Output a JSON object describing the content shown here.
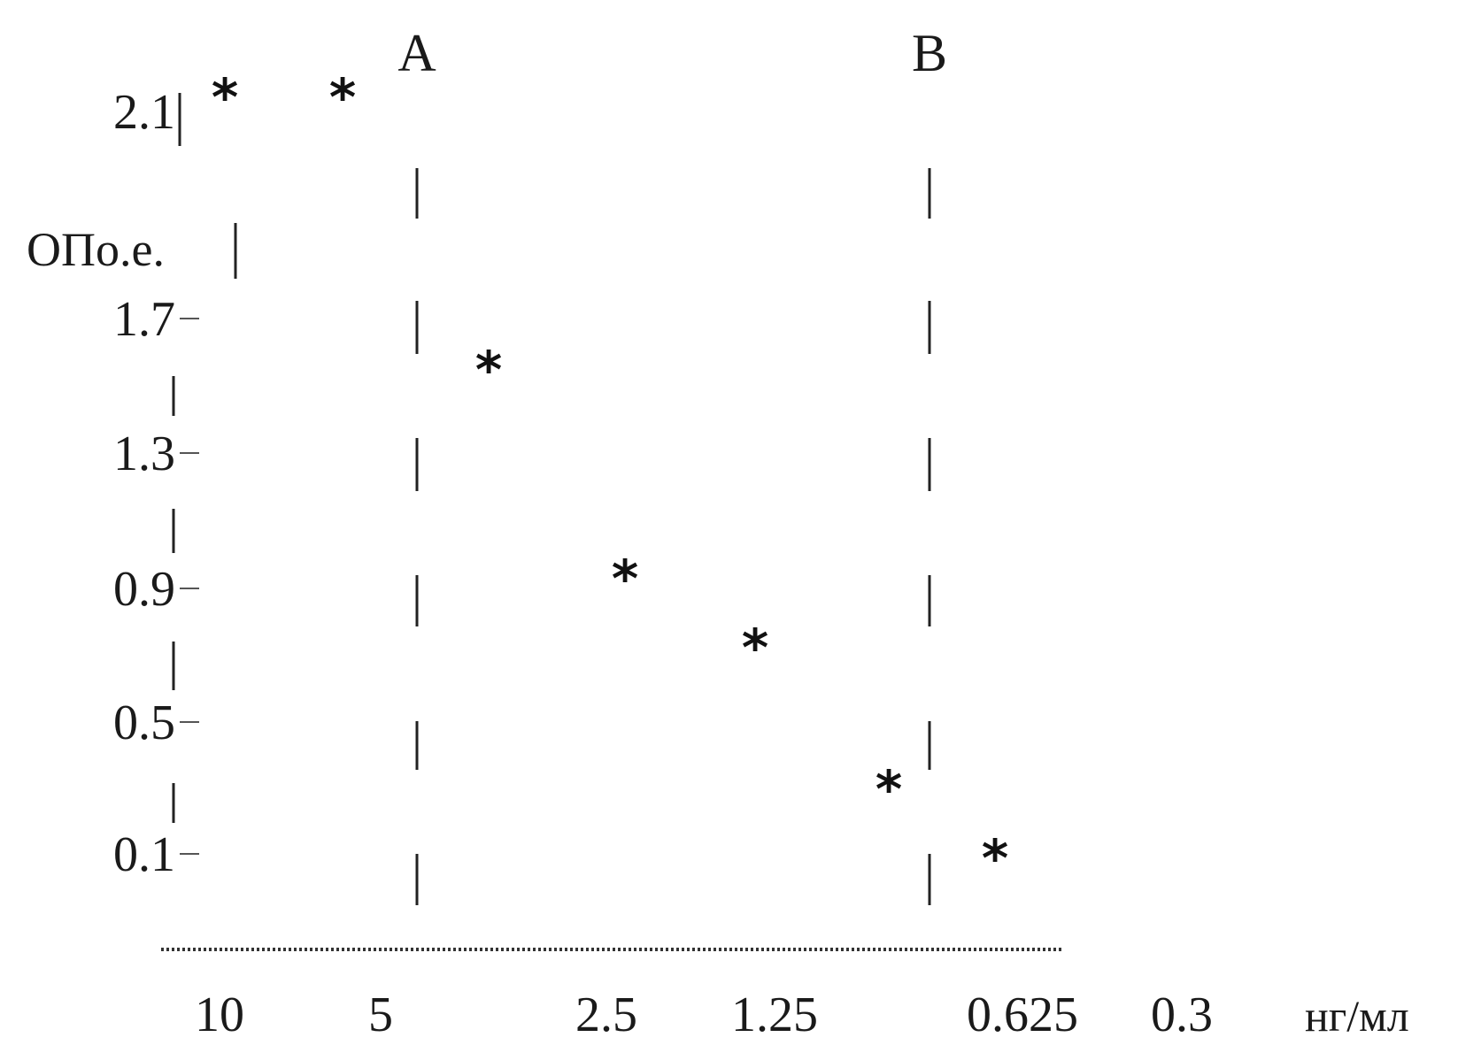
{
  "chart_data": {
    "type": "scatter",
    "title": "",
    "xlabel": "нг/мл",
    "ylabel": "ОПо.е.",
    "y_ticks": [
      "2.1",
      "1.7",
      "1.3",
      "0.9",
      "0.5",
      "0.1"
    ],
    "x_ticks": [
      "10",
      "5",
      "2.5",
      "1.25",
      "0.625",
      "0.3"
    ],
    "ylim": [
      0.1,
      2.1
    ],
    "grid": false,
    "legend": "none",
    "reference_lines": [
      {
        "label": "A",
        "x_category_index": 1.7
      },
      {
        "label": "B",
        "x_category_index": 3.9
      }
    ],
    "series": [
      {
        "marker": "*",
        "points": [
          {
            "x": "10",
            "y": 2.1,
            "x_category_index": 0
          },
          {
            "x": "5",
            "y": 2.1,
            "x_category_index": 0.6
          },
          {
            "x": "2.5",
            "y": 1.43,
            "x_category_index": 1.2
          },
          {
            "x": "2.5",
            "y": 0.93,
            "x_category_index": 1.78
          },
          {
            "x": "1.25",
            "y": 0.73,
            "x_category_index": 2.35
          },
          {
            "x": "0.625",
            "y": 0.33,
            "x_category_index": 2.9
          },
          {
            "x": "0.625",
            "y": 0.09,
            "x_category_index": 3.35
          }
        ]
      }
    ]
  },
  "colors": {
    "ink": "#111111",
    "background": "#ffffff"
  }
}
